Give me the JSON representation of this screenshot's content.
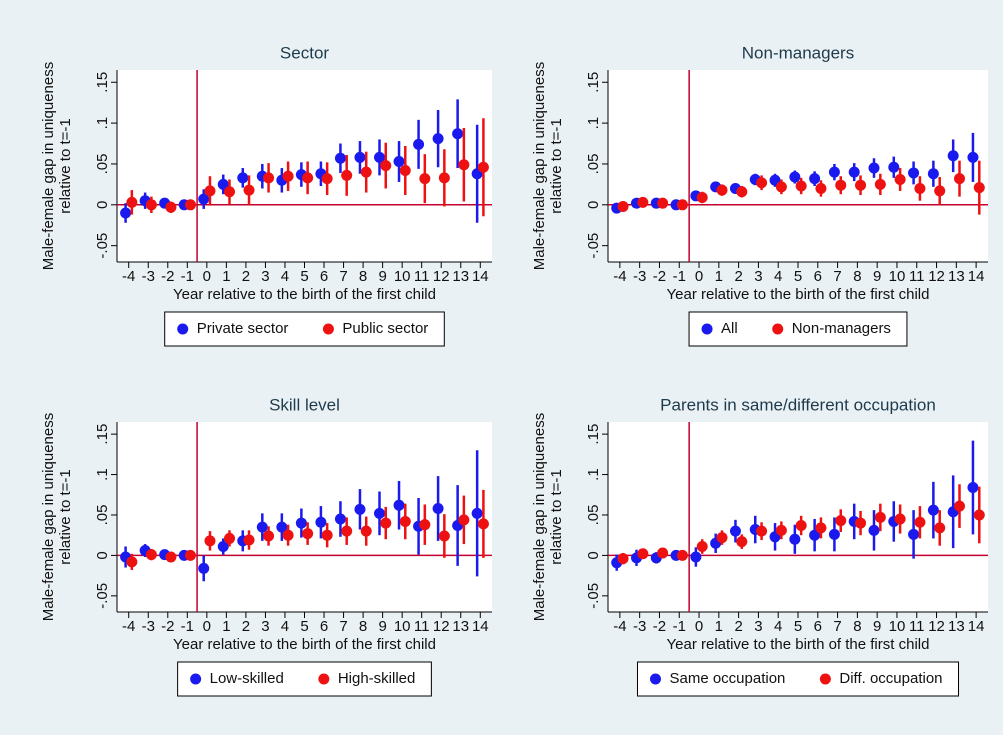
{
  "chart_data": [
    {
      "type": "errorbar",
      "title": "Sector",
      "xlabel": "Year relative to the birth of the first child",
      "ylabel": [
        "Male-female gap in uniqueness",
        "relative to t=-1"
      ],
      "x": [
        -4,
        -3,
        -2,
        -1,
        0,
        1,
        2,
        3,
        4,
        5,
        6,
        7,
        8,
        9,
        10,
        11,
        12,
        13,
        14
      ],
      "series": [
        {
          "name": "Private sector",
          "color": "#1a1aee",
          "values": [
            -0.01,
            0.005,
            0.002,
            0,
            0.007,
            0.025,
            0.033,
            0.035,
            0.03,
            0.037,
            0.038,
            0.057,
            0.058,
            0.058,
            0.053,
            0.074,
            0.081,
            0.087,
            0.038
          ],
          "errors": [
            0.012,
            0.01,
            0.006,
            0,
            0.012,
            0.012,
            0.012,
            0.015,
            0.015,
            0.015,
            0.015,
            0.018,
            0.02,
            0.022,
            0.025,
            0.03,
            0.035,
            0.042,
            0.06
          ]
        },
        {
          "name": "Public sector",
          "color": "#ee1111",
          "values": [
            0.003,
            0,
            -0.003,
            0,
            0.017,
            0.016,
            0.018,
            0.033,
            0.035,
            0.033,
            0.032,
            0.036,
            0.04,
            0.048,
            0.042,
            0.032,
            0.033,
            0.049,
            0.046
          ],
          "errors": [
            0.015,
            0.01,
            0.007,
            0,
            0.018,
            0.015,
            0.018,
            0.018,
            0.018,
            0.02,
            0.02,
            0.025,
            0.025,
            0.028,
            0.03,
            0.03,
            0.035,
            0.045,
            0.06
          ]
        }
      ],
      "xlim": [
        -4.6,
        14.6
      ],
      "xticks": [
        -4,
        -3,
        -2,
        -1,
        0,
        1,
        2,
        3,
        4,
        5,
        6,
        7,
        8,
        9,
        10,
        11,
        12,
        13,
        14
      ],
      "ylim": [
        -0.07,
        0.165
      ],
      "yticks": [
        {
          "value": -0.05,
          "label": "-.05"
        },
        0,
        {
          "value": 0.05,
          "label": ".05"
        },
        {
          "value": 0.1,
          "label": ".1"
        },
        {
          "value": 0.15,
          "label": ".15"
        }
      ],
      "hline": 0,
      "vline": -0.5
    },
    {
      "type": "errorbar",
      "title": "Non-managers",
      "xlabel": "Year relative to the birth of the first child",
      "ylabel": [
        "Male-female gap in uniqueness",
        "relative to t=-1"
      ],
      "x": [
        -4,
        -3,
        -2,
        -1,
        0,
        1,
        2,
        3,
        4,
        5,
        6,
        7,
        8,
        9,
        10,
        11,
        12,
        13,
        14
      ],
      "series": [
        {
          "name": "All",
          "color": "#1a1aee",
          "values": [
            -0.004,
            0.002,
            0.002,
            0,
            0.011,
            0.022,
            0.02,
            0.031,
            0.03,
            0.034,
            0.032,
            0.04,
            0.04,
            0.045,
            0.046,
            0.039,
            0.038,
            0.06,
            0.058
          ],
          "errors": [
            0.004,
            0.003,
            0.003,
            0,
            0.006,
            0.006,
            0.006,
            0.007,
            0.008,
            0.008,
            0.009,
            0.01,
            0.011,
            0.012,
            0.013,
            0.014,
            0.016,
            0.02,
            0.03
          ]
        },
        {
          "name": "Non-managers",
          "color": "#ee1111",
          "values": [
            -0.002,
            0.003,
            0.002,
            0,
            0.009,
            0.018,
            0.016,
            0.027,
            0.022,
            0.023,
            0.02,
            0.024,
            0.024,
            0.025,
            0.031,
            0.02,
            0.017,
            0.032,
            0.021
          ],
          "errors": [
            0.004,
            0.004,
            0.004,
            0,
            0.007,
            0.007,
            0.007,
            0.009,
            0.009,
            0.01,
            0.01,
            0.011,
            0.012,
            0.013,
            0.014,
            0.015,
            0.017,
            0.022,
            0.033
          ]
        }
      ],
      "xlim": [
        -4.6,
        14.6
      ],
      "xticks": [
        -4,
        -3,
        -2,
        -1,
        0,
        1,
        2,
        3,
        4,
        5,
        6,
        7,
        8,
        9,
        10,
        11,
        12,
        13,
        14
      ],
      "ylim": [
        -0.07,
        0.165
      ],
      "yticks": [
        {
          "value": -0.05,
          "label": "-.05"
        },
        0,
        {
          "value": 0.05,
          "label": ".05"
        },
        {
          "value": 0.1,
          "label": ".1"
        },
        {
          "value": 0.15,
          "label": ".15"
        }
      ],
      "hline": 0,
      "vline": -0.5
    },
    {
      "type": "errorbar",
      "title": "Skill level",
      "xlabel": "Year relative to the birth of the first child",
      "ylabel": [
        "Male-female gap in uniqueness",
        "relative to t=-1"
      ],
      "x": [
        -4,
        -3,
        -2,
        -1,
        0,
        1,
        2,
        3,
        4,
        5,
        6,
        7,
        8,
        9,
        10,
        11,
        12,
        13,
        14
      ],
      "series": [
        {
          "name": "Low-skilled",
          "color": "#1a1aee",
          "values": [
            -0.002,
            0.006,
            0.001,
            0,
            -0.016,
            0.011,
            0.018,
            0.035,
            0.035,
            0.04,
            0.041,
            0.045,
            0.057,
            0.052,
            0.062,
            0.036,
            0.058,
            0.037,
            0.052
          ],
          "errors": [
            0.013,
            0.008,
            0.005,
            0,
            0.016,
            0.01,
            0.013,
            0.017,
            0.017,
            0.018,
            0.02,
            0.022,
            0.025,
            0.027,
            0.03,
            0.035,
            0.04,
            0.05,
            0.078
          ]
        },
        {
          "name": "High-skilled",
          "color": "#ee1111",
          "values": [
            -0.008,
            0.001,
            -0.002,
            0,
            0.018,
            0.021,
            0.019,
            0.024,
            0.025,
            0.027,
            0.025,
            0.03,
            0.03,
            0.04,
            0.042,
            0.038,
            0.024,
            0.044,
            0.039
          ],
          "errors": [
            0.01,
            0.007,
            0.005,
            0,
            0.012,
            0.01,
            0.012,
            0.012,
            0.013,
            0.014,
            0.015,
            0.017,
            0.018,
            0.02,
            0.022,
            0.025,
            0.027,
            0.03,
            0.042
          ]
        }
      ],
      "xlim": [
        -4.6,
        14.6
      ],
      "xticks": [
        -4,
        -3,
        -2,
        -1,
        0,
        1,
        2,
        3,
        4,
        5,
        6,
        7,
        8,
        9,
        10,
        11,
        12,
        13,
        14
      ],
      "ylim": [
        -0.07,
        0.165
      ],
      "yticks": [
        {
          "value": -0.05,
          "label": "-.05"
        },
        0,
        {
          "value": 0.05,
          "label": ".05"
        },
        {
          "value": 0.1,
          "label": ".1"
        },
        {
          "value": 0.15,
          "label": ".15"
        }
      ],
      "hline": 0,
      "vline": -0.5
    },
    {
      "type": "errorbar",
      "title": "Parents in same/different occupation",
      "xlabel": "Year relative to the birth of the first child",
      "ylabel": [
        "Male-female gap in uniqueness",
        "relative to t=-1"
      ],
      "x": [
        -4,
        -3,
        -2,
        -1,
        0,
        1,
        2,
        3,
        4,
        5,
        6,
        7,
        8,
        9,
        10,
        11,
        12,
        13,
        14
      ],
      "series": [
        {
          "name": "Same occupation",
          "color": "#1a1aee",
          "values": [
            -0.009,
            -0.003,
            -0.003,
            0,
            -0.002,
            0.015,
            0.03,
            0.032,
            0.023,
            0.02,
            0.025,
            0.026,
            0.042,
            0.031,
            0.042,
            0.026,
            0.056,
            0.054,
            0.084
          ],
          "errors": [
            0.01,
            0.01,
            0.007,
            0,
            0.012,
            0.012,
            0.014,
            0.017,
            0.017,
            0.018,
            0.02,
            0.021,
            0.022,
            0.025,
            0.025,
            0.03,
            0.035,
            0.045,
            0.058
          ]
        },
        {
          "name": "Diff. occupation",
          "color": "#ee1111",
          "values": [
            -0.004,
            0.002,
            0.003,
            0,
            0.011,
            0.022,
            0.017,
            0.03,
            0.031,
            0.037,
            0.034,
            0.043,
            0.04,
            0.047,
            0.045,
            0.041,
            0.034,
            0.061,
            0.05
          ],
          "errors": [
            0.007,
            0.005,
            0.004,
            0,
            0.009,
            0.009,
            0.009,
            0.011,
            0.011,
            0.012,
            0.013,
            0.014,
            0.015,
            0.017,
            0.018,
            0.02,
            0.022,
            0.027,
            0.035
          ]
        }
      ],
      "xlim": [
        -4.6,
        14.6
      ],
      "xticks": [
        -4,
        -3,
        -2,
        -1,
        0,
        1,
        2,
        3,
        4,
        5,
        6,
        7,
        8,
        9,
        10,
        11,
        12,
        13,
        14
      ],
      "ylim": [
        -0.07,
        0.165
      ],
      "yticks": [
        {
          "value": -0.05,
          "label": "-.05"
        },
        0,
        {
          "value": 0.05,
          "label": ".05"
        },
        {
          "value": 0.1,
          "label": ".1"
        },
        {
          "value": 0.15,
          "label": ".15"
        }
      ],
      "hline": 0,
      "vline": -0.5
    }
  ]
}
